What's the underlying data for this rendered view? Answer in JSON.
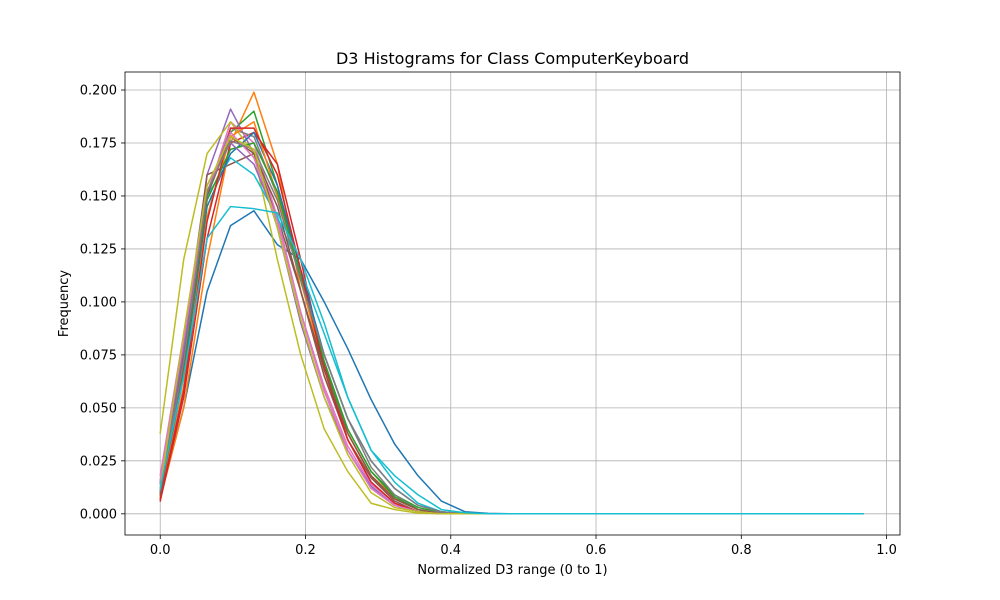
{
  "chart_data": {
    "type": "line",
    "title": "D3 Histograms for Class ComputerKeyboard",
    "xlabel": "Normalized D3 range (0 to 1)",
    "ylabel": "Frequency",
    "xlim": [
      -0.0485,
      1.0185
    ],
    "ylim": [
      -0.01,
      0.2085
    ],
    "grid": true,
    "xticks": [
      "0.0",
      "0.2",
      "0.4",
      "0.6",
      "0.8",
      "1.0"
    ],
    "yticks": [
      "0.000",
      "0.025",
      "0.050",
      "0.075",
      "0.100",
      "0.125",
      "0.150",
      "0.175",
      "0.200"
    ],
    "x": [
      0.0,
      0.0323,
      0.0645,
      0.0968,
      0.129,
      0.1613,
      0.1935,
      0.2258,
      0.2581,
      0.2903,
      0.3226,
      0.3548,
      0.3871,
      0.4194,
      0.4516,
      0.4839,
      0.5161,
      0.5484,
      0.5806,
      0.6129,
      0.6452,
      0.6774,
      0.7097,
      0.7419,
      0.7742,
      0.8065,
      0.8387,
      0.871,
      0.9032,
      0.9355,
      0.9677
    ],
    "series": [
      {
        "color": "#1f77b4",
        "values": [
          0.008,
          0.05,
          0.105,
          0.136,
          0.143,
          0.127,
          0.12,
          0.1,
          0.078,
          0.054,
          0.033,
          0.018,
          0.006,
          0.001,
          0.0002,
          0,
          0,
          0,
          0,
          0,
          0,
          0,
          0,
          0,
          0,
          0,
          0,
          0,
          0,
          0,
          0
        ]
      },
      {
        "color": "#ff7f0e",
        "values": [
          0.007,
          0.05,
          0.12,
          0.175,
          0.199,
          0.165,
          0.105,
          0.065,
          0.038,
          0.018,
          0.008,
          0.002,
          0.0005,
          0,
          0,
          0,
          0,
          0,
          0,
          0,
          0,
          0,
          0,
          0,
          0,
          0,
          0,
          0,
          0,
          0,
          0
        ]
      },
      {
        "color": "#2ca02c",
        "values": [
          0.008,
          0.06,
          0.14,
          0.18,
          0.19,
          0.155,
          0.11,
          0.07,
          0.04,
          0.02,
          0.009,
          0.003,
          0.0005,
          0,
          0,
          0,
          0,
          0,
          0,
          0,
          0,
          0,
          0,
          0,
          0,
          0,
          0,
          0,
          0,
          0,
          0
        ]
      },
      {
        "color": "#d62728",
        "values": [
          0.006,
          0.055,
          0.13,
          0.175,
          0.18,
          0.165,
          0.12,
          0.07,
          0.035,
          0.015,
          0.005,
          0.001,
          0,
          0,
          0,
          0,
          0,
          0,
          0,
          0,
          0,
          0,
          0,
          0,
          0,
          0,
          0,
          0,
          0,
          0,
          0
        ]
      },
      {
        "color": "#9467bd",
        "values": [
          0.015,
          0.08,
          0.16,
          0.191,
          0.17,
          0.135,
          0.09,
          0.055,
          0.03,
          0.012,
          0.004,
          0.001,
          0,
          0,
          0,
          0,
          0,
          0,
          0,
          0,
          0,
          0,
          0,
          0,
          0,
          0,
          0,
          0,
          0,
          0,
          0
        ]
      },
      {
        "color": "#8c564b",
        "values": [
          0.01,
          0.075,
          0.16,
          0.165,
          0.17,
          0.14,
          0.105,
          0.065,
          0.035,
          0.017,
          0.006,
          0.001,
          0,
          0,
          0,
          0,
          0,
          0,
          0,
          0,
          0,
          0,
          0,
          0,
          0,
          0,
          0,
          0,
          0,
          0,
          0
        ]
      },
      {
        "color": "#e377c2",
        "values": [
          0.018,
          0.085,
          0.15,
          0.185,
          0.175,
          0.14,
          0.095,
          0.06,
          0.032,
          0.014,
          0.005,
          0.001,
          0,
          0,
          0,
          0,
          0,
          0,
          0,
          0,
          0,
          0,
          0,
          0,
          0,
          0,
          0,
          0,
          0,
          0,
          0
        ]
      },
      {
        "color": "#7f7f7f",
        "values": [
          0.01,
          0.07,
          0.15,
          0.182,
          0.178,
          0.15,
          0.11,
          0.075,
          0.045,
          0.022,
          0.009,
          0.002,
          0.0005,
          0,
          0,
          0,
          0,
          0,
          0,
          0,
          0,
          0,
          0,
          0,
          0,
          0,
          0,
          0,
          0,
          0,
          0
        ]
      },
      {
        "color": "#bcbd22",
        "values": [
          0.038,
          0.12,
          0.17,
          0.185,
          0.17,
          0.12,
          0.075,
          0.04,
          0.02,
          0.005,
          0.002,
          0.0003,
          0,
          0,
          0,
          0,
          0,
          0,
          0,
          0,
          0,
          0,
          0,
          0,
          0,
          0,
          0,
          0,
          0,
          0,
          0
        ]
      },
      {
        "color": "#17becf",
        "values": [
          0.012,
          0.065,
          0.15,
          0.168,
          0.16,
          0.14,
          0.115,
          0.085,
          0.055,
          0.03,
          0.015,
          0.005,
          0.001,
          0,
          0,
          0,
          0,
          0,
          0,
          0,
          0,
          0,
          0,
          0,
          0,
          0,
          0,
          0,
          0,
          0,
          0
        ]
      },
      {
        "color": "#1f77b4",
        "values": [
          0.009,
          0.065,
          0.145,
          0.17,
          0.18,
          0.155,
          0.115,
          0.075,
          0.045,
          0.025,
          0.012,
          0.004,
          0.001,
          0,
          0,
          0,
          0,
          0,
          0,
          0,
          0,
          0,
          0,
          0,
          0,
          0,
          0,
          0,
          0,
          0,
          0
        ]
      },
      {
        "color": "#ff7f0e",
        "values": [
          0.008,
          0.06,
          0.14,
          0.178,
          0.185,
          0.15,
          0.11,
          0.068,
          0.038,
          0.018,
          0.007,
          0.002,
          0,
          0,
          0,
          0,
          0,
          0,
          0,
          0,
          0,
          0,
          0,
          0,
          0,
          0,
          0,
          0,
          0,
          0,
          0
        ]
      },
      {
        "color": "#2ca02c",
        "values": [
          0.01,
          0.068,
          0.148,
          0.172,
          0.175,
          0.152,
          0.112,
          0.072,
          0.04,
          0.02,
          0.008,
          0.002,
          0,
          0,
          0,
          0,
          0,
          0,
          0,
          0,
          0,
          0,
          0,
          0,
          0,
          0,
          0,
          0,
          0,
          0,
          0
        ]
      },
      {
        "color": "#d62728",
        "values": [
          0.007,
          0.058,
          0.138,
          0.182,
          0.182,
          0.16,
          0.115,
          0.068,
          0.035,
          0.015,
          0.005,
          0.001,
          0,
          0,
          0,
          0,
          0,
          0,
          0,
          0,
          0,
          0,
          0,
          0,
          0,
          0,
          0,
          0,
          0,
          0,
          0
        ]
      },
      {
        "color": "#9467bd",
        "values": [
          0.014,
          0.078,
          0.155,
          0.175,
          0.165,
          0.138,
          0.095,
          0.058,
          0.03,
          0.013,
          0.004,
          0.001,
          0,
          0,
          0,
          0,
          0,
          0,
          0,
          0,
          0,
          0,
          0,
          0,
          0,
          0,
          0,
          0,
          0,
          0,
          0
        ]
      },
      {
        "color": "#8c564b",
        "values": [
          0.009,
          0.07,
          0.15,
          0.178,
          0.17,
          0.145,
          0.105,
          0.068,
          0.038,
          0.018,
          0.007,
          0.002,
          0,
          0,
          0,
          0,
          0,
          0,
          0,
          0,
          0,
          0,
          0,
          0,
          0,
          0,
          0,
          0,
          0,
          0,
          0
        ]
      },
      {
        "color": "#e377c2",
        "values": [
          0.016,
          0.082,
          0.152,
          0.18,
          0.168,
          0.138,
          0.095,
          0.058,
          0.03,
          0.012,
          0.004,
          0.001,
          0,
          0,
          0,
          0,
          0,
          0,
          0,
          0,
          0,
          0,
          0,
          0,
          0,
          0,
          0,
          0,
          0,
          0,
          0
        ]
      },
      {
        "color": "#7f7f7f",
        "values": [
          0.011,
          0.072,
          0.152,
          0.176,
          0.172,
          0.148,
          0.11,
          0.075,
          0.045,
          0.025,
          0.012,
          0.004,
          0.001,
          0,
          0,
          0,
          0,
          0,
          0,
          0,
          0,
          0,
          0,
          0,
          0,
          0,
          0,
          0,
          0,
          0,
          0
        ]
      },
      {
        "color": "#bcbd22",
        "values": [
          0.012,
          0.085,
          0.155,
          0.178,
          0.172,
          0.135,
          0.092,
          0.055,
          0.028,
          0.01,
          0.003,
          0.001,
          0,
          0,
          0,
          0,
          0,
          0,
          0,
          0,
          0,
          0,
          0,
          0,
          0,
          0,
          0,
          0,
          0,
          0,
          0
        ]
      },
      {
        "color": "#17becf",
        "values": [
          0.012,
          0.065,
          0.13,
          0.145,
          0.144,
          0.142,
          0.12,
          0.09,
          0.055,
          0.03,
          0.018,
          0.009,
          0.002,
          0.0005,
          0,
          0,
          0,
          0,
          0,
          0,
          0,
          0,
          0,
          0,
          0,
          0,
          0,
          0,
          0,
          0,
          0
        ]
      }
    ]
  }
}
